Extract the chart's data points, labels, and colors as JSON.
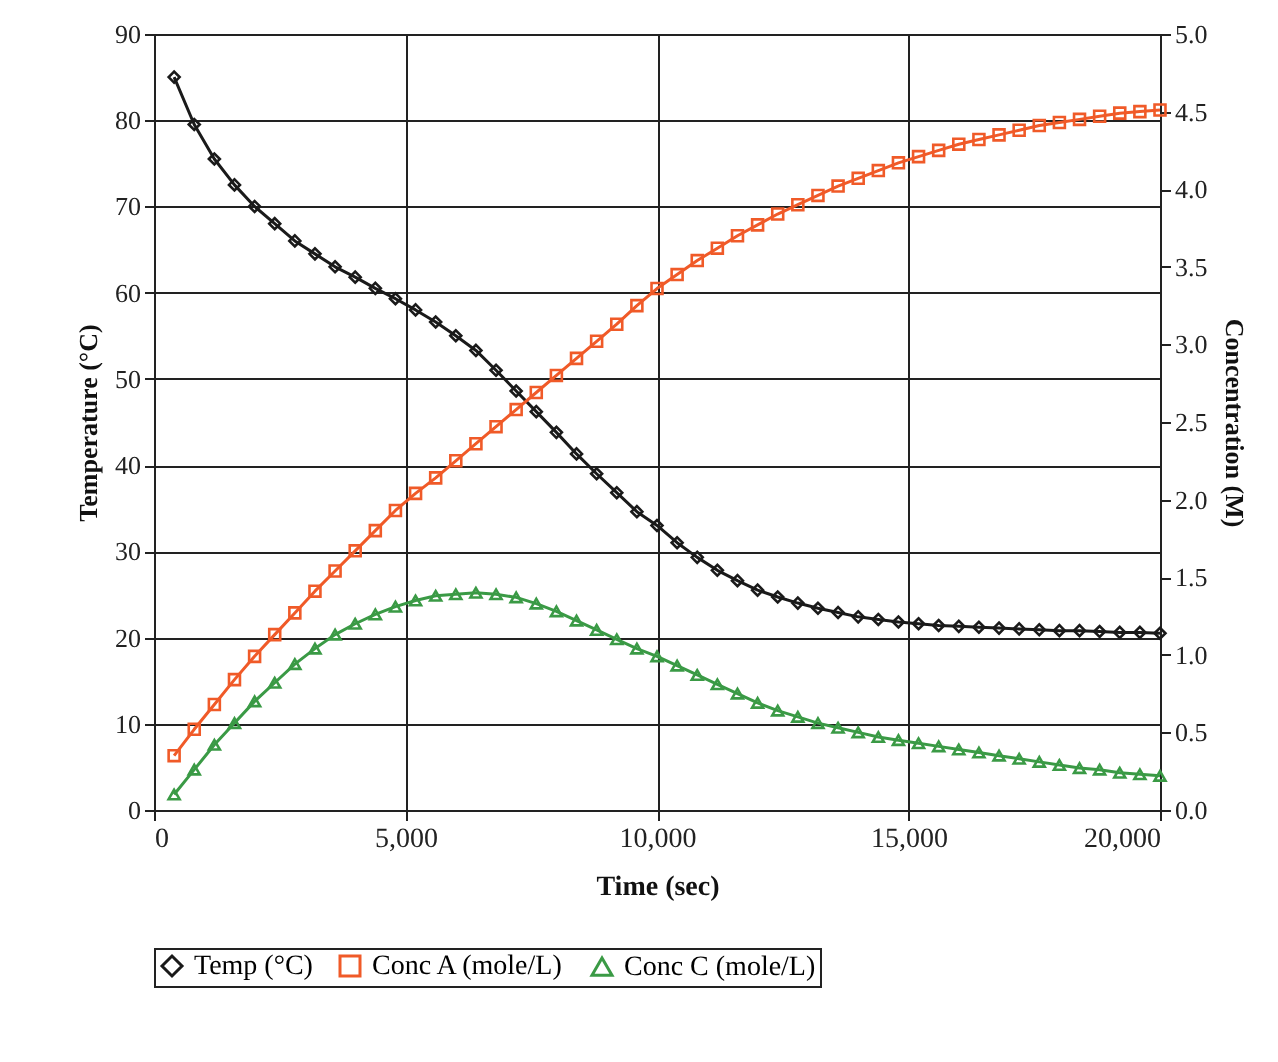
{
  "chart_data": {
    "type": "line",
    "xlabel": "Time (sec)",
    "ylabel": "Temperature (°C)",
    "y2label": "Concentration (M)",
    "x": [
      400,
      800,
      1200,
      1600,
      2000,
      2400,
      2800,
      3200,
      3600,
      4000,
      4400,
      4800,
      5200,
      5600,
      6000,
      6400,
      6800,
      7200,
      7600,
      8000,
      8400,
      8800,
      9200,
      9600,
      10000,
      10400,
      10800,
      11200,
      11600,
      12000,
      12400,
      12800,
      13200,
      13600,
      14000,
      14400,
      14800,
      15200,
      15600,
      16000,
      16400,
      16800,
      17200,
      17600,
      18000,
      18400,
      18800,
      19200,
      19600,
      20000
    ],
    "series": [
      {
        "name": "Temp (°C)",
        "color": "#1a1a1a",
        "marker": "diamond",
        "values": [
          85,
          79.5,
          75.5,
          72.5,
          70,
          68,
          66,
          64.5,
          63,
          61.8,
          60.5,
          59.3,
          58,
          56.6,
          55,
          53.3,
          51,
          48.6,
          46.2,
          43.8,
          41.3,
          39,
          36.8,
          34.6,
          33,
          31,
          29.3,
          27.8,
          26.6,
          25.5,
          24.7,
          24,
          23.4,
          22.9,
          22.4,
          22.1,
          21.8,
          21.6,
          21.4,
          21.3,
          21.2,
          21.1,
          21,
          20.9,
          20.8,
          20.8,
          20.7,
          20.6,
          20.6,
          20.5
        ]
      },
      {
        "name": "Conc A (mole/L)",
        "color": "#f05a28",
        "marker": "square",
        "axis": "y2",
        "values": [
          0.35,
          0.52,
          0.68,
          0.84,
          0.99,
          1.13,
          1.27,
          1.41,
          1.54,
          1.67,
          1.8,
          1.93,
          2.04,
          2.14,
          2.25,
          2.36,
          2.47,
          2.58,
          2.69,
          2.8,
          2.91,
          3.02,
          3.13,
          3.25,
          3.36,
          3.45,
          3.54,
          3.62,
          3.7,
          3.77,
          3.84,
          3.9,
          3.96,
          4.02,
          4.07,
          4.12,
          4.17,
          4.21,
          4.25,
          4.29,
          4.32,
          4.35,
          4.38,
          4.41,
          4.43,
          4.45,
          4.47,
          4.49,
          4.5,
          4.51
        ]
      },
      {
        "name": "Conc C (mole/L)",
        "color": "#3a9a45",
        "marker": "triangle",
        "axis": "y2",
        "values": [
          0.1,
          0.26,
          0.42,
          0.56,
          0.7,
          0.82,
          0.94,
          1.04,
          1.13,
          1.2,
          1.26,
          1.31,
          1.35,
          1.38,
          1.39,
          1.4,
          1.39,
          1.37,
          1.33,
          1.28,
          1.22,
          1.16,
          1.1,
          1.04,
          0.99,
          0.93,
          0.87,
          0.81,
          0.75,
          0.69,
          0.64,
          0.6,
          0.56,
          0.53,
          0.5,
          0.47,
          0.45,
          0.43,
          0.41,
          0.39,
          0.37,
          0.35,
          0.33,
          0.31,
          0.29,
          0.27,
          0.26,
          0.24,
          0.23,
          0.22
        ]
      }
    ],
    "xlim": [
      0,
      20000
    ],
    "xticks": [
      0,
      {
        "value": 5000,
        "label": "5,000"
      },
      {
        "value": 10000,
        "label": "10,000"
      },
      {
        "value": 15000,
        "label": "15,000"
      },
      {
        "value": 20000,
        "label": "20,000"
      }
    ],
    "ylim": [
      0,
      90
    ],
    "yticks": [
      0,
      10,
      20,
      30,
      40,
      50,
      60,
      70,
      80,
      90
    ],
    "y2lim": [
      0,
      5
    ],
    "y2ticks": [
      {
        "value": 0,
        "label": "0.0"
      },
      0.5,
      {
        "value": 1,
        "label": "1.0"
      },
      1.5,
      {
        "value": 2,
        "label": "2.0"
      },
      2.5,
      {
        "value": 3,
        "label": "3.0"
      },
      3.5,
      {
        "value": 4,
        "label": "4.0"
      },
      4.5,
      {
        "value": 5,
        "label": "5.0"
      }
    ],
    "grid": true,
    "legend": "bottom",
    "line_style": "solid"
  }
}
